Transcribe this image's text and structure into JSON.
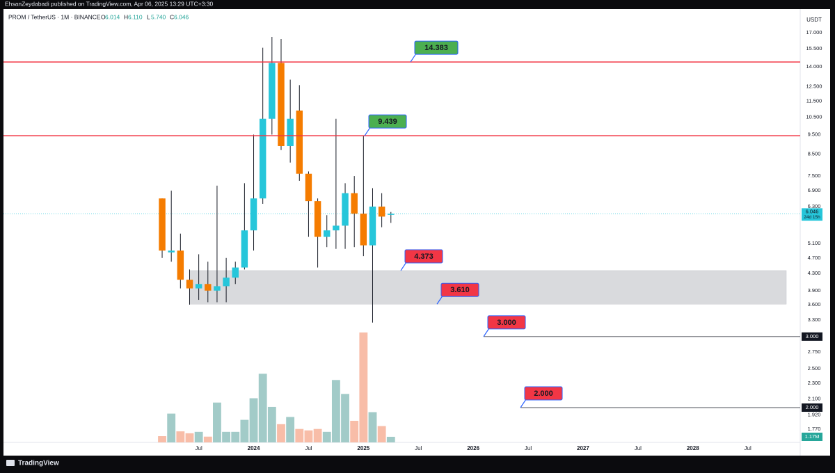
{
  "header": {
    "publisher": "EhsanZeydabadi published on TradingView.com, Apr 06, 2025 13:29 UTC+3:30",
    "logo": "TradingView"
  },
  "chart_data": {
    "type": "candlestick",
    "symbol": "PROM / TetherUS · 1M · BINANCE",
    "ohlc_legend": [
      {
        "key": "O",
        "value": "6.014"
      },
      {
        "key": "H",
        "value": "6.110"
      },
      {
        "key": "L",
        "value": "5.740"
      },
      {
        "key": "C",
        "value": "6.046"
      }
    ],
    "currency": "USDT",
    "log_scale": true,
    "up_color": "#26c6da",
    "down_color": "#f57c00",
    "volume_up_color": "#a2cbc8",
    "volume_down_color": "#f8bda8",
    "open": [
      6.6,
      4.85,
      4.9,
      4.15,
      3.95,
      4.05,
      3.9,
      4.0,
      4.2,
      4.45,
      5.5,
      6.6,
      10.4,
      14.3,
      8.9,
      10.9,
      7.6,
      6.5,
      5.3,
      5.5,
      5.65,
      6.8,
      6.05,
      5.05,
      6.3,
      6.014
    ],
    "high": [
      6.6,
      6.9,
      5.4,
      4.4,
      4.8,
      4.6,
      7.1,
      4.7,
      4.6,
      7.2,
      9.5,
      15.6,
      16.6,
      16.4,
      13.0,
      12.6,
      7.7,
      6.6,
      6.0,
      10.4,
      7.2,
      7.5,
      9.439,
      7.0,
      6.8,
      6.11
    ],
    "low": [
      4.7,
      4.6,
      3.95,
      3.6,
      3.7,
      3.65,
      3.65,
      3.65,
      4.05,
      4.4,
      4.9,
      6.4,
      9.5,
      8.7,
      8.1,
      7.3,
      5.3,
      4.45,
      5.0,
      4.95,
      4.95,
      5.0,
      4.75,
      3.25,
      5.6,
      5.74
    ],
    "close": [
      4.9,
      4.9,
      4.15,
      3.95,
      4.05,
      3.9,
      4.0,
      4.2,
      4.45,
      5.5,
      6.6,
      10.4,
      14.3,
      8.9,
      10.4,
      7.6,
      6.5,
      5.3,
      5.5,
      5.65,
      6.8,
      6.05,
      5.05,
      6.3,
      5.95,
      6.046
    ],
    "volume": [
      1.3,
      6.0,
      2.3,
      1.9,
      2.2,
      1.2,
      8.3,
      2.2,
      2.2,
      4.7,
      9.2,
      14.3,
      7.4,
      3.8,
      5.3,
      2.8,
      2.5,
      2.8,
      2.2,
      13.0,
      10.1,
      4.5,
      22.9,
      6.3,
      3.4,
      1.17
    ],
    "volume_label": "1.17M",
    "vlim": [
      0,
      36
    ],
    "last_price": {
      "value": 6.046,
      "label": "6.046",
      "countdown": "24d 15h"
    },
    "xlim": [
      -17.34,
      69.73
    ],
    "xticks": [
      {
        "value": 4,
        "label": "Jul"
      },
      {
        "value": 10,
        "label": "2024"
      },
      {
        "value": 16,
        "label": "Jul"
      },
      {
        "value": 22,
        "label": "2025"
      },
      {
        "value": 28,
        "label": "Jul"
      },
      {
        "value": 34,
        "label": "2026"
      },
      {
        "value": 40,
        "label": "Jul"
      },
      {
        "value": 46,
        "label": "2027"
      },
      {
        "value": 52,
        "label": "Jul"
      },
      {
        "value": 58,
        "label": "2028"
      },
      {
        "value": 64,
        "label": "Jul"
      }
    ],
    "ylim": [
      1.64,
      19.3
    ],
    "yticks": [
      {
        "value": 17,
        "label": "17.000"
      },
      {
        "value": 15.5,
        "label": "15.500"
      },
      {
        "value": 14,
        "label": "14.000"
      },
      {
        "value": 12.5,
        "label": "12.500"
      },
      {
        "value": 11.5,
        "label": "11.500"
      },
      {
        "value": 10.5,
        "label": "10.500"
      },
      {
        "value": 9.5,
        "label": "9.500"
      },
      {
        "value": 8.5,
        "label": "8.500"
      },
      {
        "value": 7.5,
        "label": "7.500"
      },
      {
        "value": 6.9,
        "label": "6.900"
      },
      {
        "value": 6.3,
        "label": "6.300"
      },
      {
        "value": 5.1,
        "label": "5.100"
      },
      {
        "value": 4.7,
        "label": "4.700"
      },
      {
        "value": 4.3,
        "label": "4.300"
      },
      {
        "value": 3.9,
        "label": "3.900"
      },
      {
        "value": 3.6,
        "label": "3.600"
      },
      {
        "value": 3.3,
        "label": "3.300"
      },
      {
        "value": 2.75,
        "label": "2.750"
      },
      {
        "value": 2.5,
        "label": "2.500"
      },
      {
        "value": 2.3,
        "label": "2.300"
      },
      {
        "value": 2.1,
        "label": "2.100"
      },
      {
        "value": 1.92,
        "label": "1.920"
      },
      {
        "value": 1.77,
        "label": "1.770"
      }
    ],
    "zone": {
      "low": 3.61,
      "high": 4.373,
      "color": "#d9dadd"
    },
    "annotations": [
      {
        "value": 14.383,
        "label": "14.383",
        "box_color": "#4caf50",
        "line_color": "#f23645"
      },
      {
        "value": 9.439,
        "label": "9.439",
        "box_color": "#4caf50",
        "line_color": "#f23645"
      },
      {
        "value": 4.373,
        "label": "4.373",
        "box_color": "#f23645"
      },
      {
        "value": 3.61,
        "label": "3.610",
        "box_color": "#f23645"
      },
      {
        "value": 3,
        "label": "3.000",
        "box_color": "#f23645",
        "line_color": "#131722"
      },
      {
        "value": 2,
        "label": "2.000",
        "box_color": "#f23645",
        "line_color": "#131722"
      }
    ]
  }
}
